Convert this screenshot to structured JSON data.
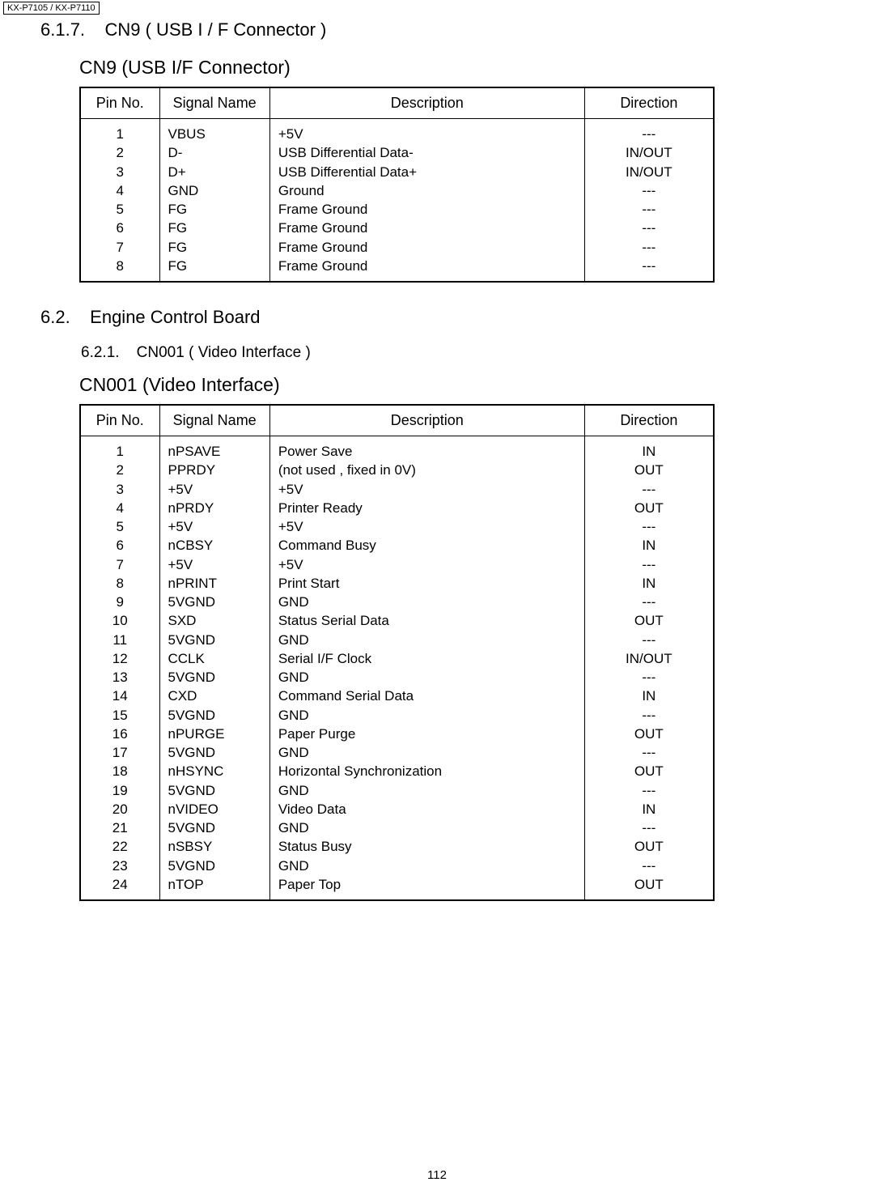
{
  "header": {
    "model": "KX-P7105   / KX-P7110"
  },
  "section1": {
    "number": "6.1.7.",
    "title": "CN9 ( USB I / F Connector )",
    "table_title": "CN9 (USB I/F Connector)",
    "headers": {
      "pin": "Pin No.",
      "signal": "Signal Name",
      "desc": "Description",
      "dir": "Direction"
    },
    "rows": [
      {
        "pin": "1",
        "signal": "VBUS",
        "desc": "+5V",
        "dir": "---"
      },
      {
        "pin": "2",
        "signal": "D-",
        "desc": "USB Differential Data-",
        "dir": "IN/OUT"
      },
      {
        "pin": "3",
        "signal": "D+",
        "desc": "USB Differential Data+",
        "dir": "IN/OUT"
      },
      {
        "pin": "4",
        "signal": "GND",
        "desc": "Ground",
        "dir": "---"
      },
      {
        "pin": "5",
        "signal": "FG",
        "desc": "Frame Ground",
        "dir": "---"
      },
      {
        "pin": "6",
        "signal": "FG",
        "desc": "Frame Ground",
        "dir": "---"
      },
      {
        "pin": "7",
        "signal": "FG",
        "desc": "Frame Ground",
        "dir": "---"
      },
      {
        "pin": "8",
        "signal": "FG",
        "desc": "Frame Ground",
        "dir": "---"
      }
    ]
  },
  "section2": {
    "number": "6.2.",
    "title": "Engine Control Board",
    "sub_number": "6.2.1.",
    "sub_title": "CN001 ( Video Interface )",
    "table_title": "CN001 (Video Interface)",
    "headers": {
      "pin": "Pin No.",
      "signal": "Signal Name",
      "desc": "Description",
      "dir": "Direction"
    },
    "rows": [
      {
        "pin": "1",
        "signal": "nPSAVE",
        "desc": "Power Save",
        "dir": "IN"
      },
      {
        "pin": "2",
        "signal": "PPRDY",
        "desc": "(not used , fixed in 0V)",
        "dir": "OUT"
      },
      {
        "pin": "3",
        "signal": "+5V",
        "desc": "+5V",
        "dir": "---"
      },
      {
        "pin": "4",
        "signal": "nPRDY",
        "desc": "Printer Ready",
        "dir": "OUT"
      },
      {
        "pin": "5",
        "signal": "+5V",
        "desc": "+5V",
        "dir": "---"
      },
      {
        "pin": "6",
        "signal": "nCBSY",
        "desc": "Command Busy",
        "dir": "IN"
      },
      {
        "pin": "7",
        "signal": "+5V",
        "desc": "+5V",
        "dir": "---"
      },
      {
        "pin": "8",
        "signal": "nPRINT",
        "desc": "Print Start",
        "dir": "IN"
      },
      {
        "pin": "9",
        "signal": "5VGND",
        "desc": "GND",
        "dir": "---"
      },
      {
        "pin": "10",
        "signal": "SXD",
        "desc": "Status Serial Data",
        "dir": "OUT"
      },
      {
        "pin": "11",
        "signal": "5VGND",
        "desc": "GND",
        "dir": "---"
      },
      {
        "pin": "12",
        "signal": "CCLK",
        "desc": "Serial I/F Clock",
        "dir": "IN/OUT"
      },
      {
        "pin": "13",
        "signal": "5VGND",
        "desc": "GND",
        "dir": "---"
      },
      {
        "pin": "14",
        "signal": "CXD",
        "desc": "Command Serial Data",
        "dir": "IN"
      },
      {
        "pin": "15",
        "signal": "5VGND",
        "desc": "GND",
        "dir": "---"
      },
      {
        "pin": "16",
        "signal": "nPURGE",
        "desc": "Paper Purge",
        "dir": "OUT"
      },
      {
        "pin": "17",
        "signal": "5VGND",
        "desc": "GND",
        "dir": "---"
      },
      {
        "pin": "18",
        "signal": "nHSYNC",
        "desc": "Horizontal Synchronization",
        "dir": "OUT"
      },
      {
        "pin": "19",
        "signal": "5VGND",
        "desc": "GND",
        "dir": "---"
      },
      {
        "pin": "20",
        "signal": "nVIDEO",
        "desc": "Video Data",
        "dir": "IN"
      },
      {
        "pin": "21",
        "signal": "5VGND",
        "desc": "GND",
        "dir": "---"
      },
      {
        "pin": "22",
        "signal": "nSBSY",
        "desc": "Status Busy",
        "dir": "OUT"
      },
      {
        "pin": "23",
        "signal": "5VGND",
        "desc": "GND",
        "dir": "---"
      },
      {
        "pin": "24",
        "signal": "nTOP",
        "desc": "Paper Top",
        "dir": "OUT"
      }
    ]
  },
  "page_number": "112"
}
